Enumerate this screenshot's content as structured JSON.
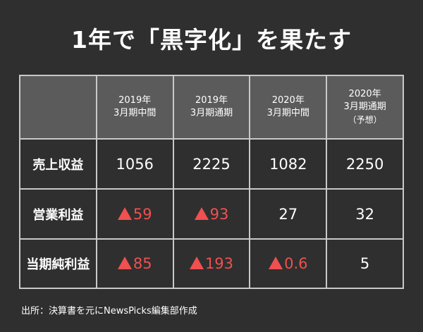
{
  "title": "1年で「黒字化」を果たす",
  "table": {
    "corner": "",
    "columns": [
      {
        "line1": "2019年",
        "line2": "3月期中間",
        "note": ""
      },
      {
        "line1": "2019年",
        "line2": "3月期通期",
        "note": ""
      },
      {
        "line1": "2020年",
        "line2": "3月期中間",
        "note": ""
      },
      {
        "line1": "2020年",
        "line2": "3月期通期",
        "note": "（予想）"
      }
    ],
    "rows": [
      {
        "label": "売上収益",
        "cells": [
          {
            "text": "1056",
            "negative": false
          },
          {
            "text": "2225",
            "negative": false
          },
          {
            "text": "1082",
            "negative": false
          },
          {
            "text": "2250",
            "negative": false
          }
        ]
      },
      {
        "label": "営業利益",
        "cells": [
          {
            "text": "59",
            "negative": true
          },
          {
            "text": "93",
            "negative": true
          },
          {
            "text": "27",
            "negative": false
          },
          {
            "text": "32",
            "negative": false
          }
        ]
      },
      {
        "label": "当期純利益",
        "cells": [
          {
            "text": "85",
            "negative": true
          },
          {
            "text": "193",
            "negative": true
          },
          {
            "text": "0.6",
            "negative": true
          },
          {
            "text": "5",
            "negative": false
          }
        ]
      }
    ]
  },
  "colors": {
    "background": "#2f2f2f",
    "header_fill": "#5b5b5b",
    "grid_line": "#c9c9c9",
    "negative": "#f05050",
    "text": "#ffffff"
  },
  "icons": {
    "negative_marker": "red-triangle-icon"
  },
  "source": "出所：決算書を元にNewsPicks編集部作成"
}
